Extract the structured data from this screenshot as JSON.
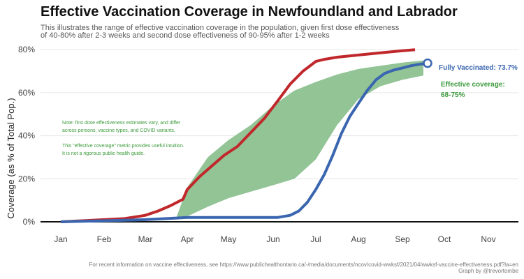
{
  "title": "Effective Vaccination Coverage in Newfoundland and Labrador",
  "subtitle_line1": "This illustrates the range of effective vaccination coverage in the population, given first dose effectiveness",
  "subtitle_line2": "of 40-80% after 2-3 weeks and second dose effectiveness of 90-95% after 1-2 weeks",
  "notes": [
    "Note: first dose effectiveness estimates vary, and differ",
    "across persons, vaccine types, and COVID variants.",
    "This \"effective coverage\" metric provides useful intuition.",
    "It is not a rigorous public health guide."
  ],
  "footnote_line1": "For recent information on vaccine effectiveness, see https://www.publichealthontario.ca/-/media/documents/ncov/covid-wwksf/2021/04/wwksf-vaccine-effectiveness.pdf?la=en",
  "footnote_line2": "Graph by @trevortombe",
  "annotation_fully": "Fully Vaccinated: 73.7%",
  "annotation_effective_1": "Effective coverage:",
  "annotation_effective_2": "68-75%",
  "colors": {
    "at_least_one_dose": "#c0282c",
    "fully_vaccinated": "#3a66b0",
    "effective_band": "#8cc190"
  },
  "chart_data": {
    "type": "line",
    "title": "Effective Vaccination Coverage in Newfoundland and Labrador",
    "ylabel": "Coverage (as % of Total Pop.)",
    "xlabel": "",
    "x_unit": "month of 2021",
    "xlim": [
      0,
      11
    ],
    "ylim": [
      0,
      82
    ],
    "x_tick_values": [
      0,
      1,
      2,
      3,
      4,
      5,
      6,
      7,
      8,
      9,
      10
    ],
    "x_tick_labels": [
      "Jan",
      "Feb",
      "Mar",
      "Apr",
      "May",
      "Jun",
      "Jul",
      "Aug",
      "Sep",
      "Oct",
      "Nov"
    ],
    "y_tick_values": [
      0,
      20,
      40,
      60,
      80
    ],
    "y_tick_labels": [
      "0%",
      "20%",
      "40%",
      "60%",
      "80%"
    ],
    "grid": "horizontal",
    "series": [
      {
        "key": "at_least_one_dose",
        "x": [
          0,
          0.5,
          1,
          1.5,
          2,
          2.3,
          2.6,
          2.9,
          3.0,
          3.3,
          3.6,
          3.9,
          4.2,
          4.5,
          4.8,
          5.1,
          5.4,
          5.7,
          6.0,
          6.2,
          6.5,
          7.0,
          7.5,
          8.0,
          8.3
        ],
        "y": [
          0,
          0.5,
          1.0,
          1.5,
          3.0,
          5.0,
          7.5,
          10.5,
          15.0,
          21.0,
          26.0,
          31.0,
          35.0,
          41.5,
          48.0,
          56.0,
          64.0,
          70.0,
          74.5,
          75.5,
          76.5,
          77.5,
          78.5,
          79.5,
          80.0
        ]
      },
      {
        "name": "Fully Vaccinated",
        "key": "fully_vaccinated",
        "x": [
          0,
          1,
          2,
          2.5,
          3,
          3.5,
          4,
          4.5,
          5,
          5.1,
          5.4,
          5.6,
          5.8,
          6.0,
          6.2,
          6.4,
          6.6,
          6.8,
          7.0,
          7.2,
          7.4,
          7.6,
          7.8,
          8.0,
          8.2,
          8.4,
          8.6
        ],
        "y": [
          0,
          0.5,
          1.0,
          1.5,
          2.0,
          2.0,
          2.0,
          2.0,
          2.0,
          2.0,
          3.0,
          5.0,
          9.0,
          15.0,
          22.0,
          31.0,
          41.0,
          49.0,
          55.0,
          61.0,
          66.0,
          69.0,
          70.5,
          71.5,
          72.5,
          73.2,
          73.7
        ]
      }
    ],
    "band": {
      "name": "Effective coverage",
      "key": "effective_band",
      "x": [
        2.75,
        3.0,
        3.5,
        4.0,
        4.5,
        5.0,
        5.5,
        6.0,
        6.5,
        7.0,
        7.5,
        8.0,
        8.5
      ],
      "lower": [
        1.0,
        2.5,
        7.0,
        11.0,
        14.0,
        17.0,
        20.0,
        29.0,
        45.0,
        57.0,
        63.0,
        66.0,
        68.0
      ],
      "upper": [
        2.5,
        16.0,
        30.0,
        38.0,
        45.0,
        54.0,
        61.0,
        65.0,
        68.5,
        71.0,
        72.5,
        74.0,
        75.0
      ]
    }
  }
}
